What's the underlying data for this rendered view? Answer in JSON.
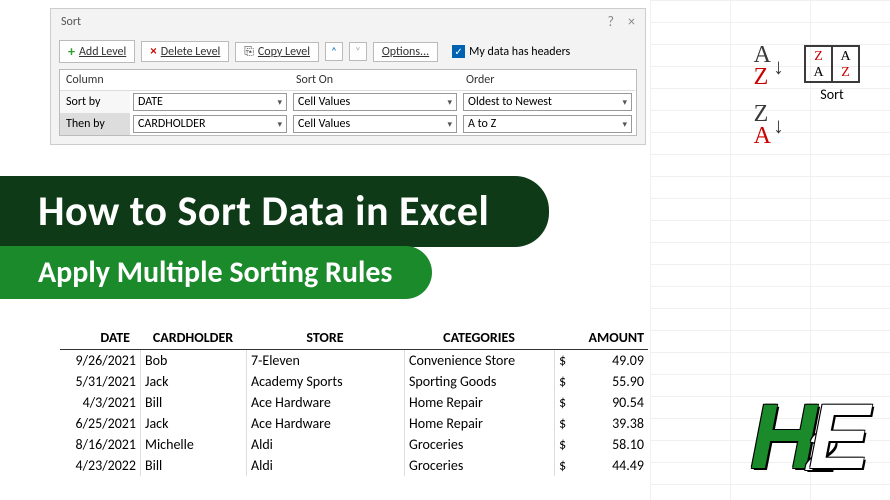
{
  "dialog": {
    "title": "Sort",
    "help_glyph": "?",
    "close_glyph": "×",
    "buttons": {
      "add": "Add Level",
      "delete": "Delete Level",
      "copy": "Copy Level",
      "up": "˄",
      "down": "˅",
      "options": "Options..."
    },
    "checkbox_label": "My data has headers",
    "checkbox_checked": true,
    "columns": {
      "col": "Column",
      "sorton": "Sort On",
      "order": "Order"
    },
    "rows": [
      {
        "label": "Sort by",
        "field": "DATE",
        "sorton": "Cell Values",
        "order": "Oldest to Newest",
        "selected": false
      },
      {
        "label": "Then by",
        "field": "CARDHOLDER",
        "sorton": "Cell Values",
        "order": "A to Z",
        "selected": true
      }
    ]
  },
  "ribbon": {
    "asc": "A\nZ",
    "desc": "Z\nA",
    "sort_label": "Sort"
  },
  "banner1": "How to Sort Data in Excel",
  "banner2": "Apply Multiple Sorting Rules",
  "table": {
    "headers": [
      "DATE",
      "CARDHOLDER",
      "STORE",
      "CATEGORIES",
      "AMOUNT"
    ],
    "rows": [
      {
        "date": "9/26/2021",
        "holder": "Bob",
        "store": "7-Eleven",
        "cat": "Convenience Store",
        "amt": "49.09"
      },
      {
        "date": "5/31/2021",
        "holder": "Jack",
        "store": "Academy Sports",
        "cat": "Sporting Goods",
        "amt": "55.90"
      },
      {
        "date": "4/3/2021",
        "holder": "Bill",
        "store": "Ace Hardware",
        "cat": "Home Repair",
        "amt": "90.54"
      },
      {
        "date": "6/25/2021",
        "holder": "Jack",
        "store": "Ace Hardware",
        "cat": "Home Repair",
        "amt": "39.38"
      },
      {
        "date": "8/16/2021",
        "holder": "Michelle",
        "store": "Aldi",
        "cat": "Groceries",
        "amt": "58.10"
      },
      {
        "date": "4/23/2022",
        "holder": "Bill",
        "store": "Aldi",
        "cat": "Groceries",
        "amt": "44.49"
      }
    ]
  },
  "colors": {
    "banner1_bg": "#0e3a17",
    "banner2_bg": "#1a8a2b",
    "banner_text": "#ffffff",
    "dialog_bg": "#f3f3f3"
  }
}
